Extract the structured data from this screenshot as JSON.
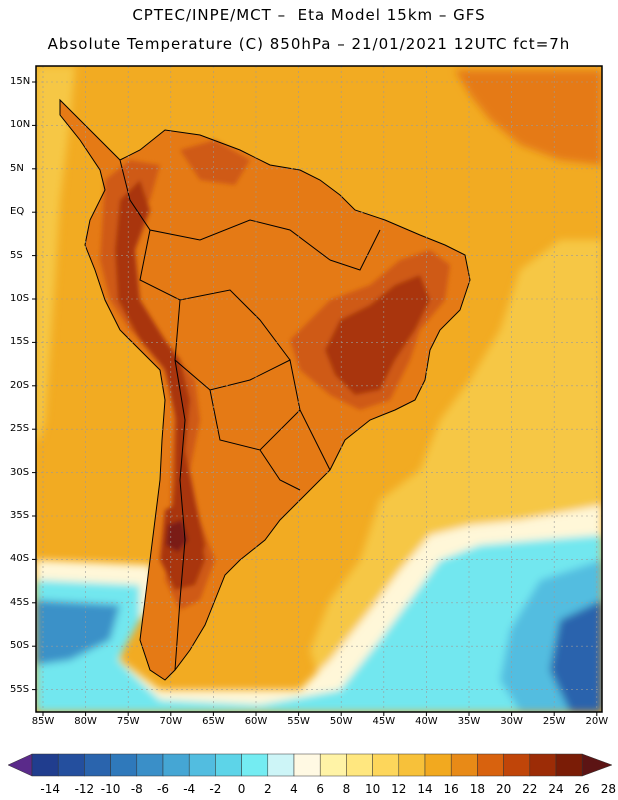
{
  "title": {
    "line1": "CPTEC/INPE/MCT –  Eta Model 15km – GFS",
    "line2": "Absolute Temperature (C) 850hPa – 21/01/2021 12UTC fct=7h"
  },
  "lat_labels": [
    "15N",
    "10N",
    "5N",
    "EQ",
    "5S",
    "10S",
    "15S",
    "20S",
    "25S",
    "30S",
    "35S",
    "40S",
    "45S",
    "50S",
    "55S"
  ],
  "lon_labels": [
    "85W",
    "80W",
    "75W",
    "70W",
    "65W",
    "60W",
    "55W",
    "50W",
    "45W",
    "40W",
    "35W",
    "30W",
    "25W",
    "20W"
  ],
  "colorbar": {
    "ticks": [
      "-14",
      "-12",
      "-10",
      "-8",
      "-6",
      "-4",
      "-2",
      "0",
      "2",
      "4",
      "6",
      "8",
      "10",
      "12",
      "14",
      "16",
      "18",
      "20",
      "22",
      "24",
      "26",
      "28"
    ],
    "colors": [
      "#5a2a8a",
      "#203d8e",
      "#244f9e",
      "#2a64ad",
      "#2f79bb",
      "#3a8fc8",
      "#45a6d4",
      "#52bde0",
      "#5dd4e8",
      "#74ecf2",
      "#cdf5f7",
      "#fff9e3",
      "#fff3a6",
      "#ffe77f",
      "#fdd65b",
      "#f7c13a",
      "#f2a91f",
      "#e88a17",
      "#d8620e",
      "#c04509",
      "#9c2c06",
      "#7a1c06",
      "#5c1414"
    ]
  },
  "map_colors": {
    "ocean_warm": "#f2ab22",
    "ocean_mid": "#f6c745",
    "ocean_cool": "#fbe29a",
    "hot": "#e57a15",
    "hotter": "#cf5a12",
    "hottest": "#a93410",
    "extreme": "#7a1c18",
    "cold1": "#fff7d8",
    "cold2": "#cff3f6",
    "cold3": "#72e7ef",
    "cold4": "#52bde0",
    "cold5": "#3a91c8",
    "cold6": "#2a64ad"
  }
}
